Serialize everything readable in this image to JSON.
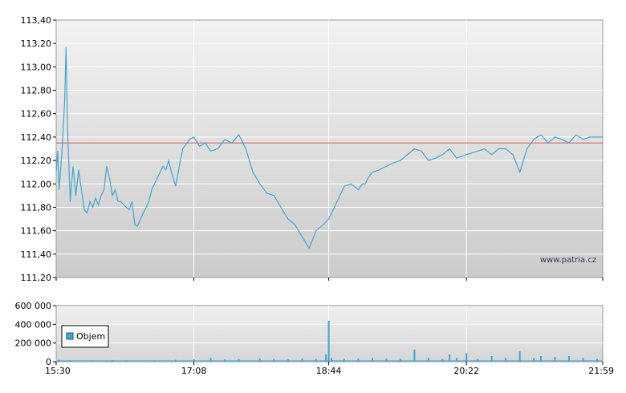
{
  "chart_data": [
    {
      "type": "line",
      "panel": "price",
      "y_tick_labels": [
        "111,20",
        "111,40",
        "111,60",
        "111,80",
        "112,00",
        "112,20",
        "112,40",
        "112,60",
        "112,80",
        "113,00",
        "113,20",
        "113,40"
      ],
      "y_ticks": [
        111.2,
        111.4,
        111.6,
        111.8,
        112.0,
        112.2,
        112.4,
        112.6,
        112.8,
        113.0,
        113.2,
        113.4
      ],
      "ylim": [
        111.2,
        113.4
      ],
      "reference_line": 112.35,
      "watermark": "www.patria.cz",
      "grid": true,
      "series": [
        {
          "x": [
            "15:30",
            "15:31",
            "15:32",
            "15:34",
            "15:36",
            "15:37",
            "15:38",
            "15:40",
            "15:42",
            "15:44",
            "15:46",
            "15:48",
            "15:50",
            "15:52",
            "15:54",
            "15:56",
            "15:58",
            "16:00",
            "16:02",
            "16:04",
            "16:06",
            "16:08",
            "16:10",
            "16:12",
            "16:14",
            "16:16",
            "16:18",
            "16:20",
            "16:22",
            "16:24",
            "16:26",
            "16:28",
            "16:30",
            "16:32",
            "16:34",
            "16:36",
            "16:38",
            "16:40",
            "16:42",
            "16:44",
            "16:46",
            "16:48",
            "16:50",
            "16:52",
            "16:55",
            "17:00",
            "17:05",
            "17:08",
            "17:12",
            "17:16",
            "17:20",
            "17:25",
            "17:30",
            "17:35",
            "17:40",
            "17:45",
            "17:50",
            "17:55",
            "18:00",
            "18:05",
            "18:10",
            "18:15",
            "18:20",
            "18:25",
            "18:30",
            "18:35",
            "18:40",
            "18:44",
            "18:50",
            "18:55",
            "19:00",
            "19:05",
            "19:08",
            "19:10",
            "19:12",
            "19:15",
            "19:20",
            "19:25",
            "19:30",
            "19:35",
            "19:40",
            "19:45",
            "19:50",
            "19:55",
            "20:00",
            "20:05",
            "20:10",
            "20:15",
            "20:22",
            "20:30",
            "20:35",
            "20:40",
            "20:45",
            "20:50",
            "20:55",
            "21:00",
            "21:05",
            "21:10",
            "21:15",
            "21:20",
            "21:25",
            "21:30",
            "21:35",
            "21:40",
            "21:45",
            "21:50",
            "21:55",
            "21:59"
          ],
          "y": [
            112.1,
            112.28,
            111.95,
            112.25,
            112.7,
            113.17,
            112.5,
            111.85,
            112.15,
            111.9,
            112.12,
            111.95,
            111.78,
            111.75,
            111.85,
            111.8,
            111.88,
            111.82,
            111.9,
            111.95,
            112.15,
            112.05,
            111.9,
            111.95,
            111.85,
            111.85,
            111.82,
            111.8,
            111.78,
            111.85,
            111.65,
            111.64,
            111.7,
            111.75,
            111.8,
            111.85,
            111.95,
            112.0,
            112.05,
            112.1,
            112.15,
            112.12,
            112.2,
            112.1,
            111.98,
            112.3,
            112.38,
            112.4,
            112.32,
            112.35,
            112.28,
            112.3,
            112.38,
            112.35,
            112.42,
            112.3,
            112.1,
            112.0,
            111.92,
            111.9,
            111.8,
            111.7,
            111.65,
            111.55,
            111.45,
            111.6,
            111.65,
            111.7,
            111.85,
            111.98,
            112.0,
            111.95,
            112.0,
            112.0,
            112.05,
            112.1,
            112.12,
            112.15,
            112.18,
            112.2,
            112.25,
            112.3,
            112.28,
            112.2,
            112.22,
            112.25,
            112.3,
            112.22,
            112.25,
            112.28,
            112.3,
            112.25,
            112.3,
            112.3,
            112.25,
            112.1,
            112.3,
            112.38,
            112.42,
            112.35,
            112.4,
            112.38,
            112.35,
            112.42,
            112.38,
            112.4,
            112.4,
            112.4
          ]
        }
      ]
    },
    {
      "type": "bar",
      "panel": "volume",
      "legend": [
        "Objem"
      ],
      "legend_position": "left",
      "y_tick_labels": [
        "0",
        "200 000",
        "400 000",
        "600 000"
      ],
      "y_ticks": [
        0,
        200000,
        400000,
        600000
      ],
      "ylim": [
        0,
        600000
      ],
      "x_tick_labels": [
        "15:30",
        "17:08",
        "18:44",
        "20:22",
        "21:59"
      ],
      "grid": true,
      "series": [
        {
          "name": "Objem",
          "x": [
            "15:32",
            "15:40",
            "15:55",
            "16:10",
            "16:20",
            "16:40",
            "16:55",
            "17:08",
            "17:20",
            "17:30",
            "17:40",
            "17:55",
            "18:05",
            "18:15",
            "18:25",
            "18:35",
            "18:42",
            "18:44",
            "18:46",
            "18:55",
            "19:05",
            "19:15",
            "19:25",
            "19:35",
            "19:45",
            "19:55",
            "20:05",
            "20:10",
            "20:15",
            "20:22",
            "20:30",
            "20:40",
            "20:50",
            "21:00",
            "21:10",
            "21:15",
            "21:25",
            "21:35",
            "21:45",
            "21:55"
          ],
          "values": [
            20000,
            15000,
            12000,
            18000,
            15000,
            15000,
            20000,
            25000,
            40000,
            25000,
            30000,
            35000,
            30000,
            25000,
            35000,
            30000,
            80000,
            440000,
            40000,
            30000,
            35000,
            40000,
            35000,
            30000,
            130000,
            40000,
            30000,
            80000,
            40000,
            90000,
            30000,
            60000,
            40000,
            110000,
            40000,
            60000,
            50000,
            60000,
            40000,
            30000
          ]
        }
      ]
    }
  ]
}
